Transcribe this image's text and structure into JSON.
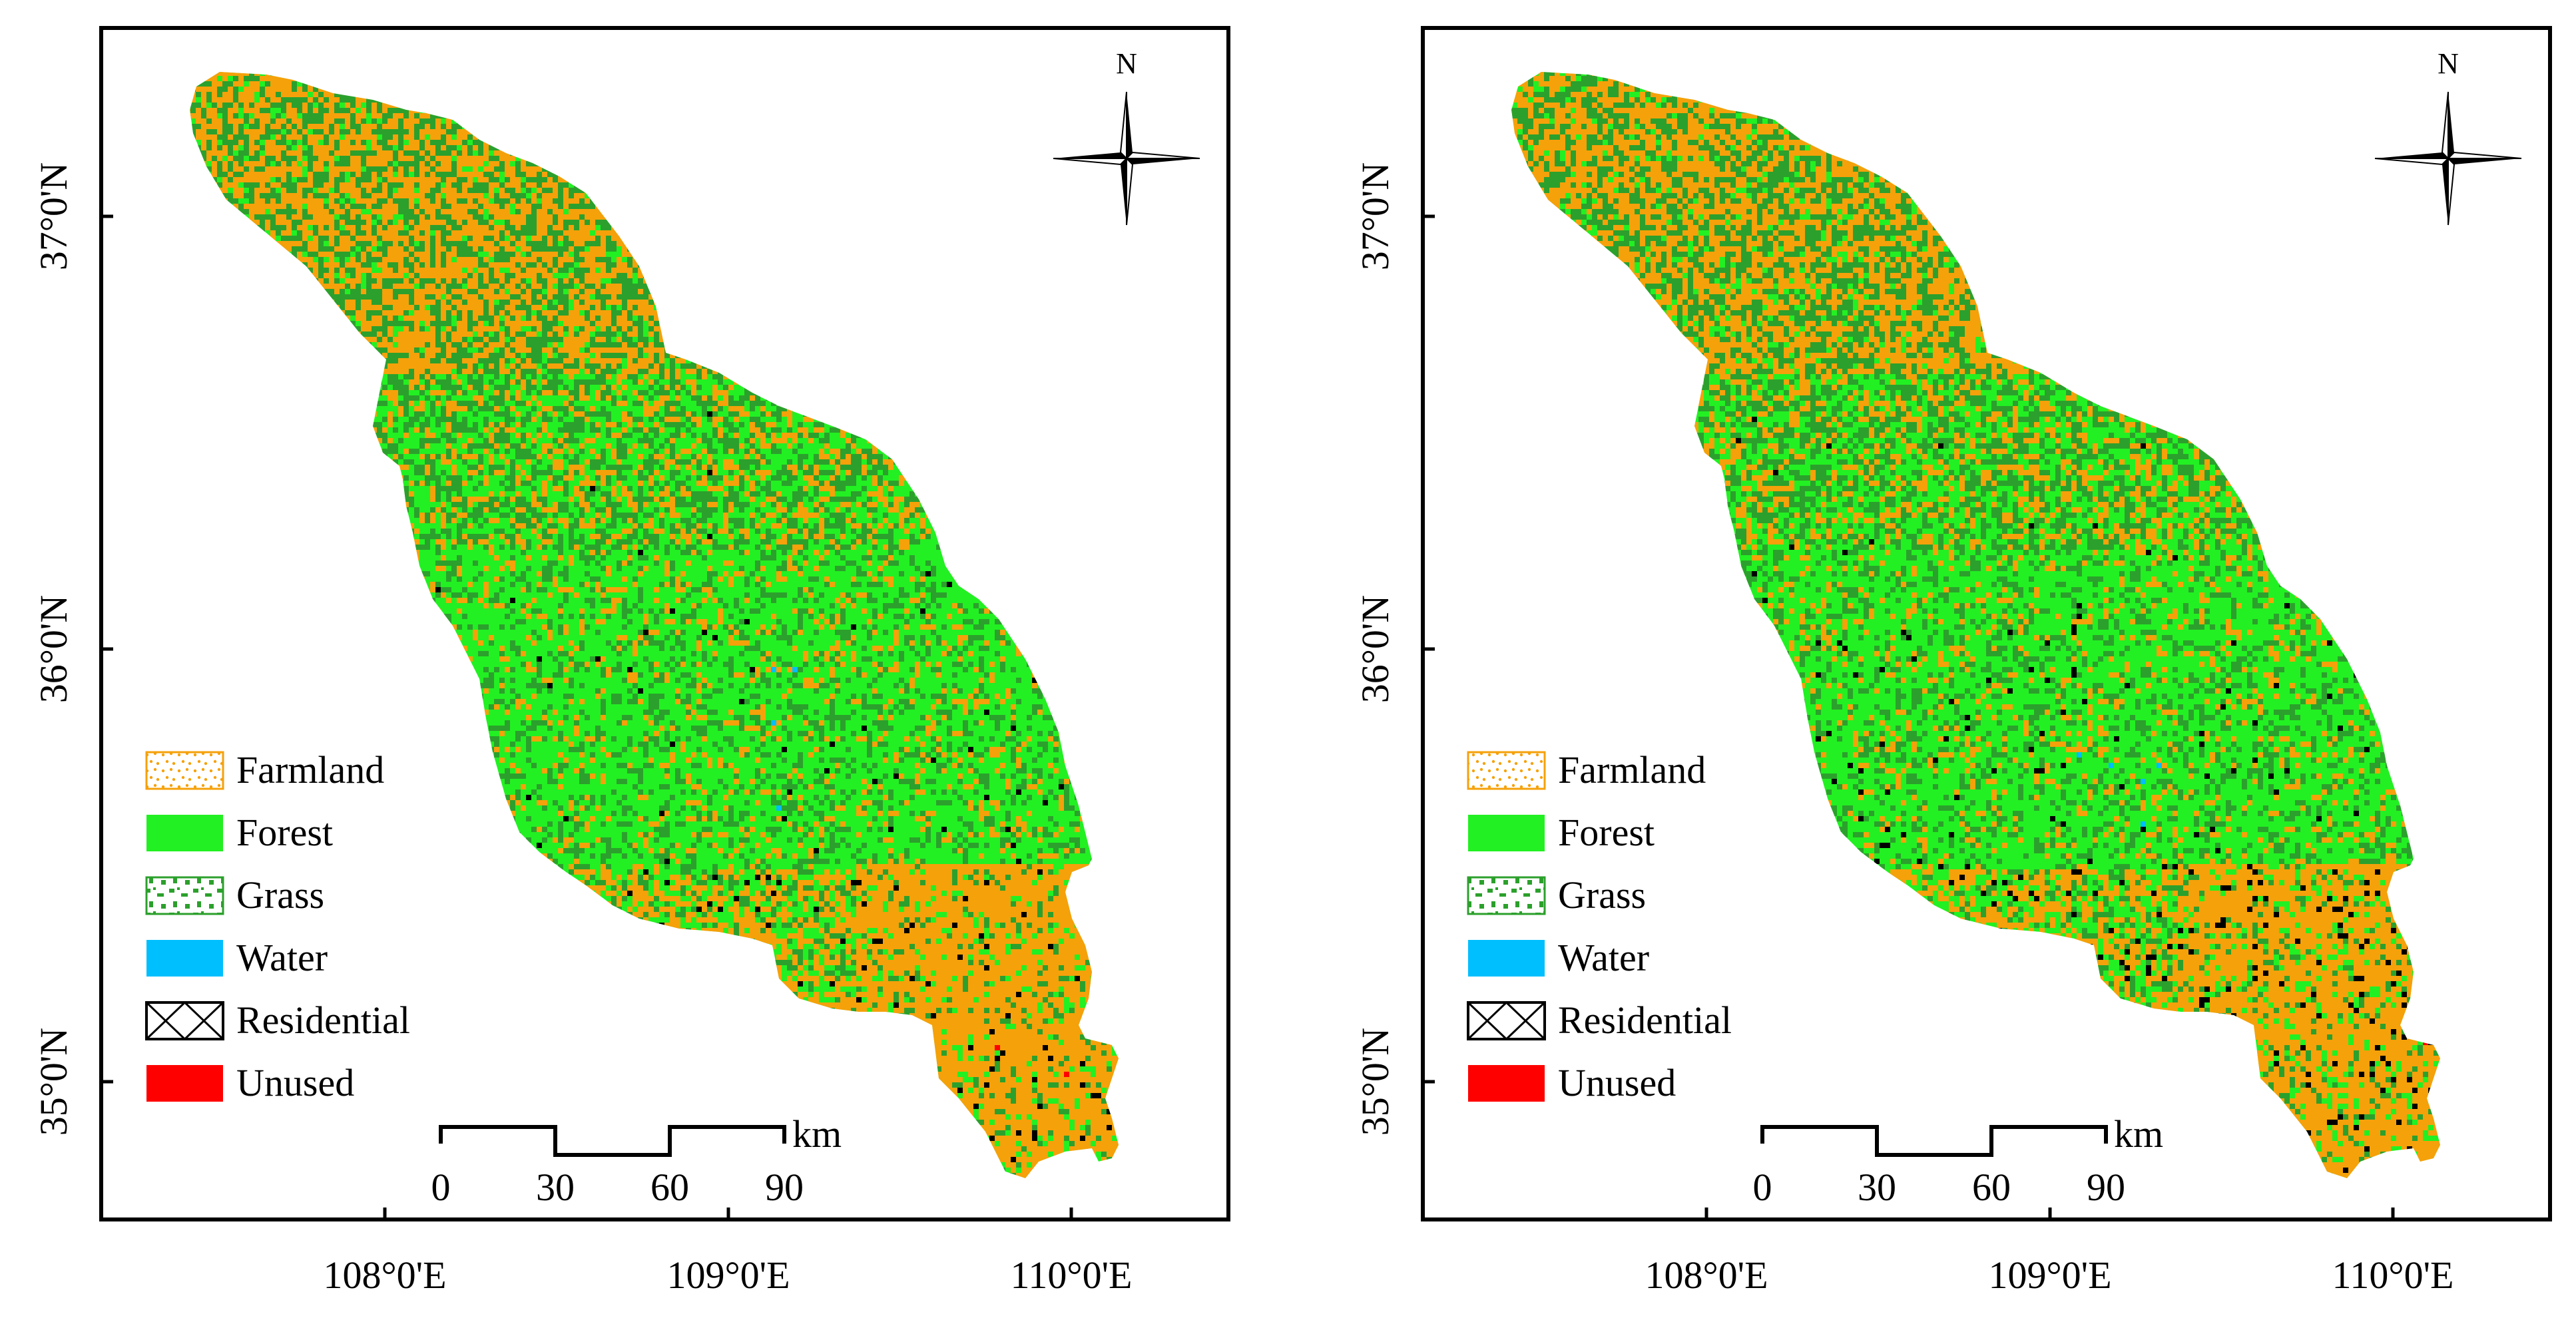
{
  "panels": [
    {
      "id": "left",
      "north_label": "N",
      "lat_labels": [
        "37°0'N",
        "36°0'N",
        "35°0'N"
      ],
      "lon_labels": [
        "108°0'E",
        "109°0'E",
        "110°0'E"
      ],
      "legend": [
        {
          "label": "Farmland",
          "swatch": "dotted-orange"
        },
        {
          "label": "Forest",
          "swatch": "solid-green"
        },
        {
          "label": "Grass",
          "swatch": "patchy-green"
        },
        {
          "label": "Water",
          "swatch": "solid-cyan"
        },
        {
          "label": "Residential",
          "swatch": "cross-hatch"
        },
        {
          "label": "Unused",
          "swatch": "solid-red"
        }
      ],
      "scale": {
        "unit": "km",
        "ticks": [
          "0",
          "30",
          "60",
          "90"
        ]
      },
      "residential_density": 1.0,
      "unused_density": 1.0
    },
    {
      "id": "right",
      "north_label": "N",
      "lat_labels": [
        "37°0'N",
        "36°0'N",
        "35°0'N"
      ],
      "lon_labels": [
        "108°0'E",
        "109°0'E",
        "110°0'E"
      ],
      "legend": [
        {
          "label": "Farmland",
          "swatch": "dotted-orange"
        },
        {
          "label": "Forest",
          "swatch": "solid-green"
        },
        {
          "label": "Grass",
          "swatch": "patchy-green"
        },
        {
          "label": "Water",
          "swatch": "solid-cyan"
        },
        {
          "label": "Residential",
          "swatch": "cross-hatch"
        },
        {
          "label": "Unused",
          "swatch": "solid-red"
        }
      ],
      "scale": {
        "unit": "km",
        "ticks": [
          "0",
          "30",
          "60",
          "90"
        ]
      },
      "residential_density": 1.8,
      "unused_density": 0.6
    }
  ],
  "colors": {
    "farmland": "#F5A10A",
    "forest": "#22F022",
    "grass": "#2CA02C",
    "water": "#00BFFF",
    "residential": "#000000",
    "unused": "#FF0000"
  }
}
